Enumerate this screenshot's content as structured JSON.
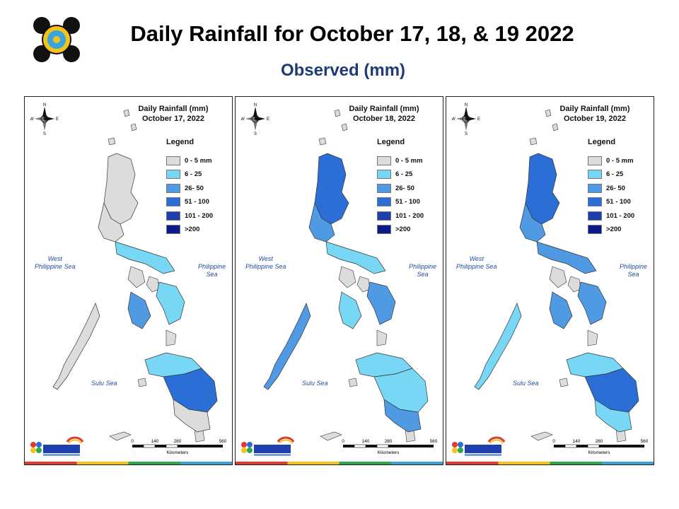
{
  "header": {
    "title": "Daily Rainfall for October 17, 18, & 19 2022",
    "subtitle": "Observed (mm)"
  },
  "logos": {
    "dost_pagasa_seal": "DOST-PAGASA seal",
    "pagasa_footer": "DOST PAGASA The Weather and Climate Authority"
  },
  "compass": {
    "n": "N",
    "s": "S",
    "e": "E",
    "w": "W"
  },
  "legend": {
    "title": "Legend",
    "classes": [
      {
        "label": "0 - 5 mm",
        "color": "#dcdcdc"
      },
      {
        "label": "6 - 25",
        "color": "#78d7f5"
      },
      {
        "label": "26- 50",
        "color": "#4f9ae3"
      },
      {
        "label": "51 - 100",
        "color": "#2b6fd6"
      },
      {
        "label": "101 - 200",
        "color": "#1f3fae"
      },
      {
        "label": ">200",
        "color": "#0d1a8a"
      }
    ]
  },
  "seas": {
    "west": "West\nPhilippine Sea",
    "east": "Philippine Sea",
    "sulu": "Sulu Sea"
  },
  "scale": {
    "ticks": [
      "0",
      "140",
      "280",
      "560"
    ],
    "unit": "Kilometers"
  },
  "panels": [
    {
      "map_title": "Daily Rainfall (mm)",
      "date": "October 17, 2022",
      "region_rainfall_class": {
        "luzon_north": 0,
        "luzon_central": 0,
        "luzon_south": 1,
        "visayas_west": 2,
        "visayas_east": 1,
        "palawan": 0,
        "mindanao_north": 1,
        "mindanao_central": 3,
        "mindanao_south": 0
      }
    },
    {
      "map_title": "Daily Rainfall (mm)",
      "date": "October 18, 2022",
      "region_rainfall_class": {
        "luzon_north": 3,
        "luzon_central": 2,
        "luzon_south": 1,
        "visayas_west": 1,
        "visayas_east": 2,
        "palawan": 2,
        "mindanao_north": 1,
        "mindanao_central": 1,
        "mindanao_south": 2
      }
    },
    {
      "map_title": "Daily Rainfall (mm)",
      "date": "October 19, 2022",
      "region_rainfall_class": {
        "luzon_north": 3,
        "luzon_central": 2,
        "luzon_south": 2,
        "visayas_west": 2,
        "visayas_east": 2,
        "palawan": 1,
        "mindanao_north": 1,
        "mindanao_central": 3,
        "mindanao_south": 1
      }
    }
  ]
}
